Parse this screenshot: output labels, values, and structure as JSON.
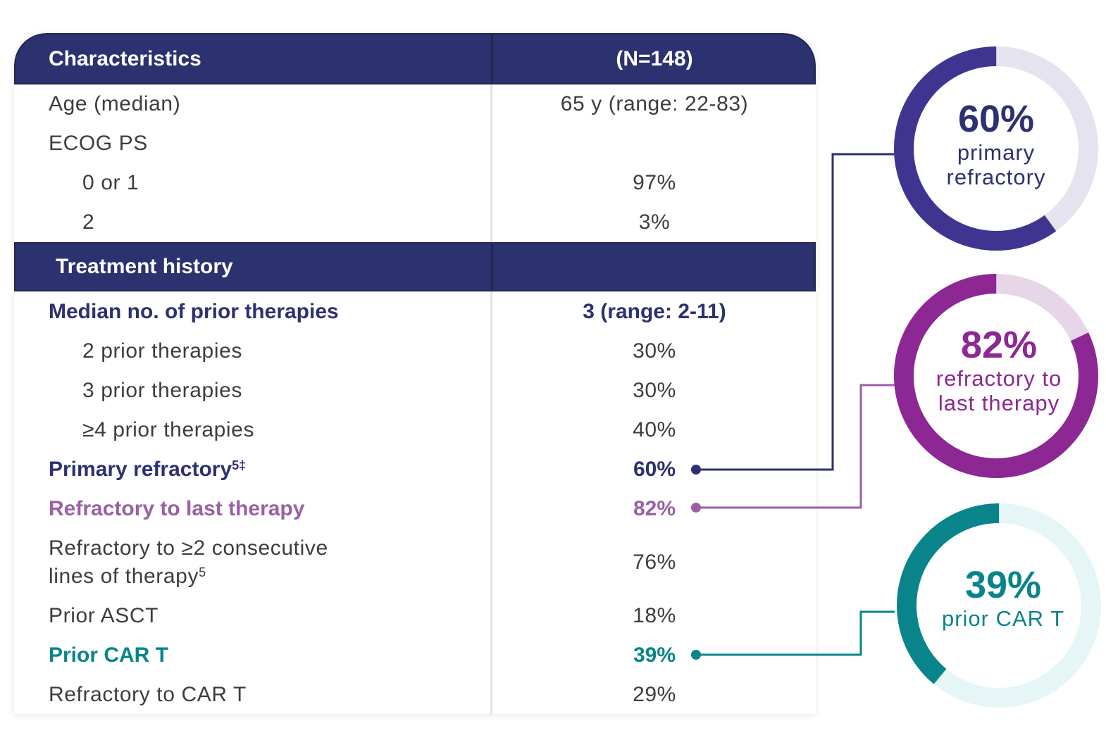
{
  "table": {
    "header": {
      "characteristics": "Characteristics",
      "n": "(N=148)"
    },
    "characteristics_rows": [
      {
        "label": "Age (median)",
        "value": "65 y (range: 22-83)"
      },
      {
        "label": "ECOG PS",
        "value": ""
      },
      {
        "label": "0 or 1",
        "value": "97%"
      },
      {
        "label": "2",
        "value": "3%"
      }
    ],
    "treatment_header": "Treatment history",
    "treatment_rows": [
      {
        "label": "Median no. of prior therapies",
        "value": "3 (range: 2-11)"
      },
      {
        "label": "2 prior therapies",
        "value": "30%"
      },
      {
        "label": "3 prior therapies",
        "value": "30%"
      },
      {
        "label": "≥4 prior therapies",
        "value": "40%"
      },
      {
        "label": "Primary refractory",
        "sup": "5‡",
        "value": "60%"
      },
      {
        "label": "Refractory to last therapy",
        "value": "82%"
      },
      {
        "label_line1": "Refractory to ≥2 consecutive",
        "label_line2": "lines of therapy",
        "sup": "5",
        "value": "76%"
      },
      {
        "label": "Prior ASCT",
        "value": "18%"
      },
      {
        "label": "Prior CAR T",
        "value": "39%"
      },
      {
        "label": "Refractory to CAR T",
        "value": "29%"
      }
    ]
  },
  "callouts": [
    {
      "percent": "60%",
      "line1": "primary",
      "line2": "refractory",
      "fraction": 0.6,
      "color": "#3f3591",
      "track": "#e4e3ef"
    },
    {
      "percent": "82%",
      "line1": "refractory to",
      "line2": "last therapy",
      "fraction": 0.82,
      "color": "#8d2793",
      "track": "#e6d6e8"
    },
    {
      "percent": "39%",
      "line1": "prior CAR T",
      "line2": "",
      "fraction": 0.39,
      "color": "#0a848b",
      "track": "#e6f5f6"
    }
  ],
  "colors": {
    "navy": "#2c3170",
    "purple": "#9b5fa6",
    "teal": "#0a848b",
    "text": "#3d3d3d"
  }
}
